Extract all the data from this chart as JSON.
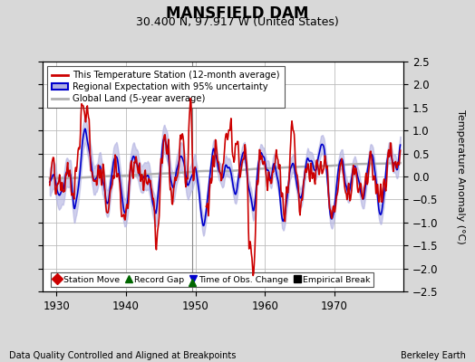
{
  "title": "MANSFIELD DAM",
  "subtitle": "30.400 N, 97.917 W (United States)",
  "ylabel": "Temperature Anomaly (°C)",
  "footer_left": "Data Quality Controlled and Aligned at Breakpoints",
  "footer_right": "Berkeley Earth",
  "xlim": [
    1928,
    1980
  ],
  "ylim": [
    -2.5,
    2.5
  ],
  "xticks": [
    1930,
    1940,
    1950,
    1960,
    1970
  ],
  "yticks": [
    -2.5,
    -2.0,
    -1.5,
    -1.0,
    -0.5,
    0.0,
    0.5,
    1.0,
    1.5,
    2.0,
    2.5
  ],
  "bg_color": "#d8d8d8",
  "plot_bg_color": "#ffffff",
  "grid_color": "#bbbbbb",
  "station_line_color": "#cc0000",
  "regional_line_color": "#0000cc",
  "regional_fill_color": "#b0b0e0",
  "global_line_color": "#b0b0b0",
  "vline_color": "#888888",
  "vline_x": 1949.5,
  "record_gap_x": 1949.5,
  "title_fontsize": 12,
  "subtitle_fontsize": 9,
  "label_fontsize": 8,
  "tick_fontsize": 8.5
}
